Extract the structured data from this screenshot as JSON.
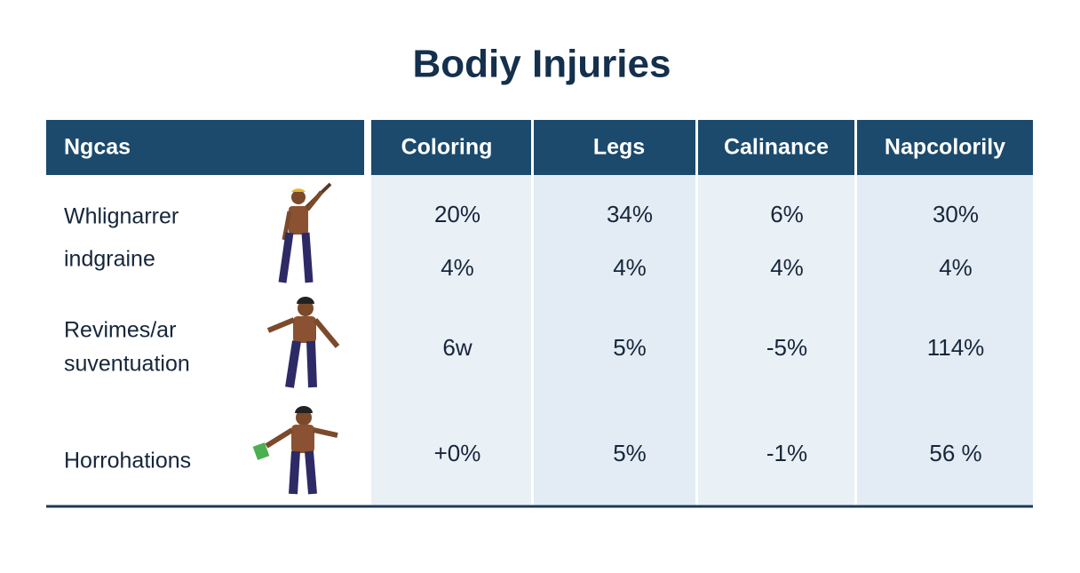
{
  "title": "Bodiy Injuries",
  "table": {
    "header": [
      "Ngcas",
      "Coloring",
      "Legs",
      "Calinance",
      "Napcolorily"
    ],
    "rows": [
      {
        "label": [
          "Whlignarrer",
          "indgraine"
        ],
        "values": [
          [
            "20%",
            "4%"
          ],
          [
            "34%",
            "4%"
          ],
          [
            "6%",
            "4%"
          ],
          [
            "30%",
            "4%"
          ]
        ]
      },
      {
        "label": [
          "Revimes/ar",
          "suventuation"
        ],
        "values": [
          [
            "6w"
          ],
          [
            "5%"
          ],
          [
            "-5%"
          ],
          [
            "114%"
          ]
        ]
      },
      {
        "label": [
          "Horrohations"
        ],
        "values": [
          [
            "+0%"
          ],
          [
            "5%"
          ],
          [
            "-1%"
          ],
          [
            "56 %"
          ]
        ]
      }
    ]
  }
}
